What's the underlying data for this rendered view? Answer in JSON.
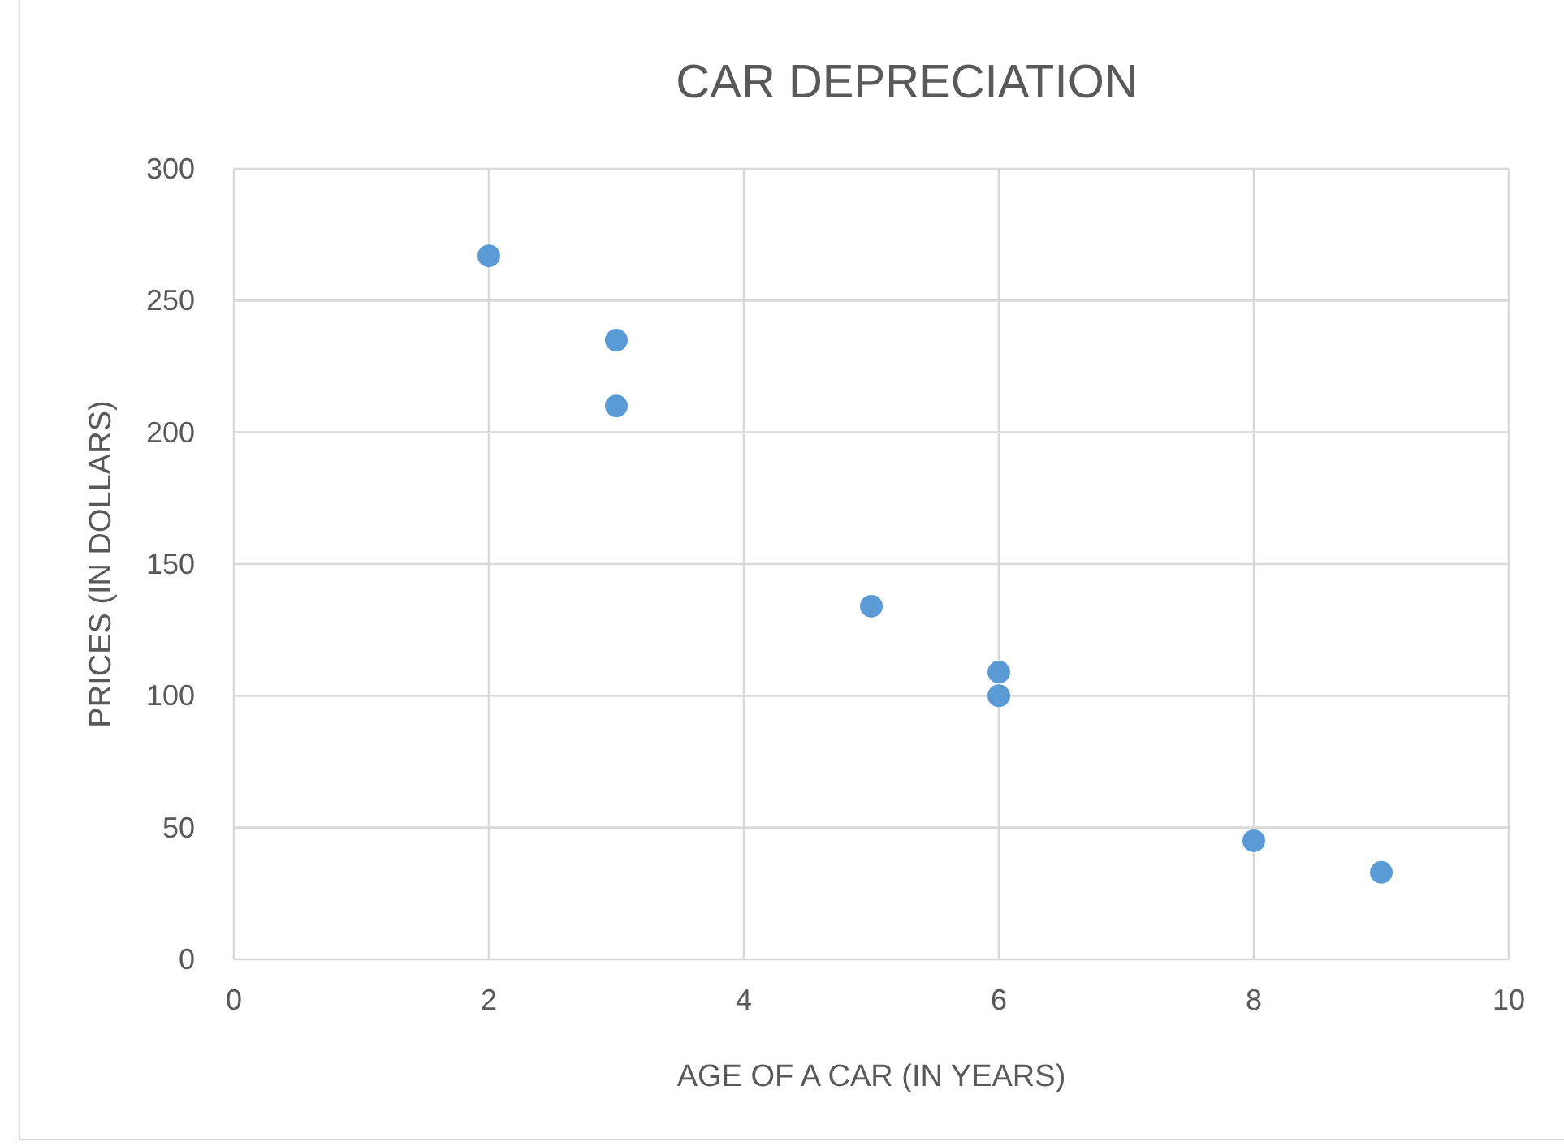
{
  "chart_data": {
    "type": "scatter",
    "title": "CAR DEPRECIATION",
    "xlabel": "AGE OF A CAR (IN YEARS)",
    "ylabel": "PRICES (IN DOLLARS)",
    "x": [
      2,
      3,
      3,
      5,
      6,
      6,
      8,
      9
    ],
    "series": [
      {
        "color": "#5b9bd5",
        "values": [
          267,
          235,
          210,
          134,
          109,
          100,
          45,
          33
        ]
      }
    ],
    "xlim": [
      0,
      10
    ],
    "xticks": [
      0,
      2,
      4,
      6,
      8,
      10
    ],
    "ylim": [
      0,
      300
    ],
    "yticks": [
      0,
      50,
      100,
      150,
      200,
      250,
      300
    ],
    "grid": true,
    "marker": "circle"
  }
}
